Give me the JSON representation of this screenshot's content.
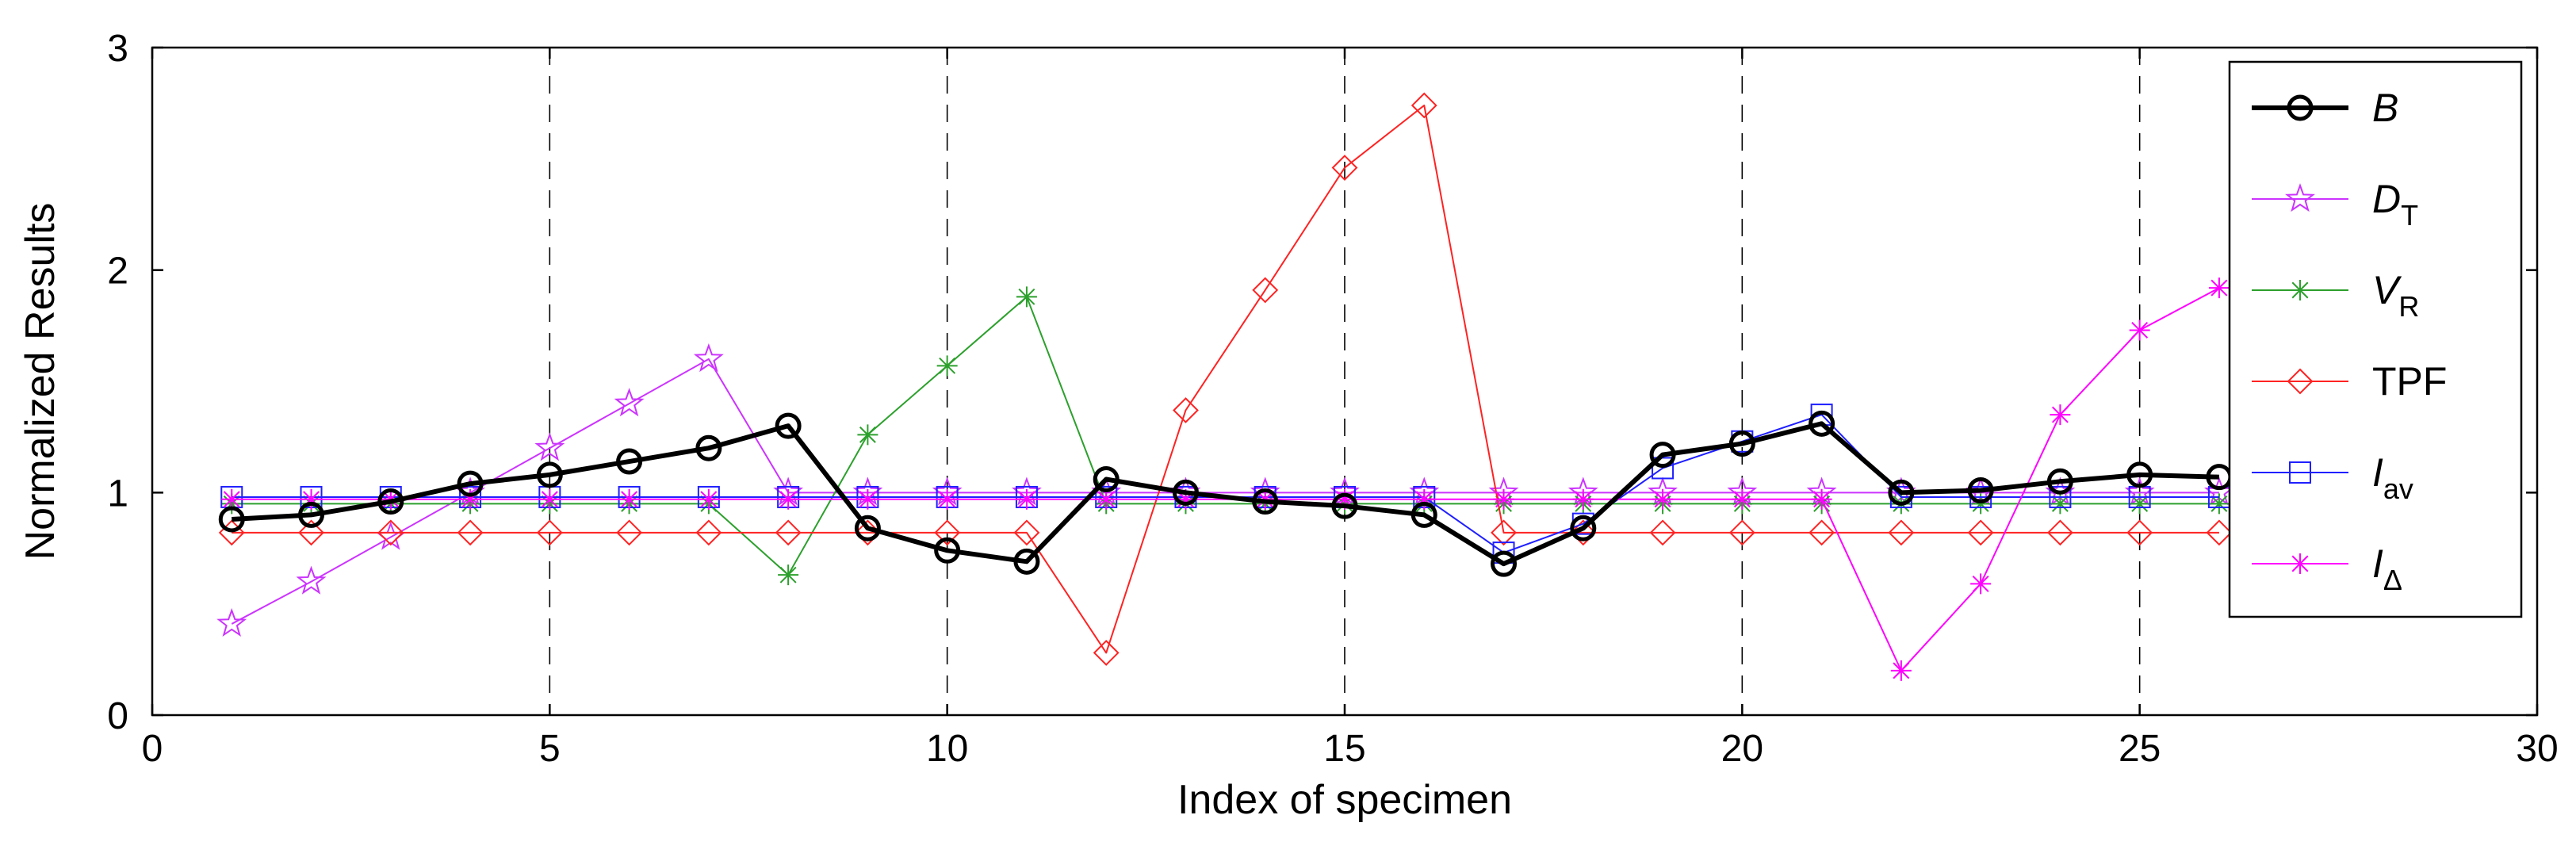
{
  "chart_data": {
    "type": "line",
    "xlabel": "Index of specimen",
    "ylabel": "Normalized Results",
    "xlim": [
      0,
      30
    ],
    "ylim": [
      0,
      3
    ],
    "xticks": [
      0,
      5,
      10,
      15,
      20,
      25,
      30
    ],
    "yticks": [
      0,
      1,
      2,
      3
    ],
    "vlines": [
      5,
      10,
      15,
      20,
      25
    ],
    "legend_position": "top-right",
    "x": [
      1,
      2,
      3,
      4,
      5,
      6,
      7,
      8,
      9,
      10,
      11,
      12,
      13,
      14,
      15,
      16,
      17,
      18,
      19,
      20,
      21,
      22,
      23,
      24,
      25,
      26
    ],
    "series": [
      {
        "name": "B",
        "label_main": "B",
        "label_sub": "",
        "italic": true,
        "color": "#000000",
        "marker": "circle",
        "bold": true,
        "values": [
          0.88,
          0.9,
          0.96,
          1.04,
          1.08,
          1.14,
          1.2,
          1.3,
          0.84,
          0.74,
          0.69,
          1.06,
          1.0,
          0.96,
          0.94,
          0.9,
          0.68,
          0.84,
          1.17,
          1.22,
          1.31,
          1.0,
          1.01,
          1.05,
          1.08,
          1.07
        ]
      },
      {
        "name": "DT",
        "label_main": "D",
        "label_sub": "T",
        "italic": true,
        "color": "#cc33ff",
        "marker": "star",
        "bold": false,
        "values": [
          0.41,
          0.6,
          0.8,
          1.0,
          1.2,
          1.4,
          1.6,
          1.0,
          1.0,
          1.0,
          1.0,
          1.0,
          1.0,
          1.0,
          1.0,
          1.0,
          1.0,
          1.0,
          1.0,
          1.0,
          1.0,
          1.0,
          1.0,
          1.0,
          1.0,
          1.0
        ]
      },
      {
        "name": "VR",
        "label_main": "V",
        "label_sub": "R",
        "italic": true,
        "color": "#2ca02c",
        "marker": "asterisk",
        "bold": false,
        "values": [
          0.95,
          0.95,
          0.95,
          0.95,
          0.95,
          0.95,
          0.95,
          0.63,
          1.26,
          1.57,
          1.88,
          0.95,
          0.95,
          0.95,
          0.95,
          0.95,
          0.95,
          0.95,
          0.95,
          0.95,
          0.95,
          0.95,
          0.95,
          0.95,
          0.95,
          0.95
        ]
      },
      {
        "name": "TPF",
        "label_main": "TPF",
        "label_sub": "",
        "italic": false,
        "color": "#ff2222",
        "marker": "diamond",
        "bold": false,
        "values": [
          0.82,
          0.82,
          0.82,
          0.82,
          0.82,
          0.82,
          0.82,
          0.82,
          0.82,
          0.82,
          0.82,
          0.28,
          1.37,
          1.91,
          2.46,
          2.74,
          0.82,
          0.82,
          0.82,
          0.82,
          0.82,
          0.82,
          0.82,
          0.82,
          0.82,
          0.82
        ]
      },
      {
        "name": "Iav",
        "label_main": "I",
        "label_sub": "av",
        "italic": true,
        "color": "#1f1fff",
        "marker": "square",
        "bold": false,
        "values": [
          0.98,
          0.98,
          0.98,
          0.98,
          0.98,
          0.98,
          0.98,
          0.98,
          0.98,
          0.98,
          0.98,
          0.98,
          0.98,
          0.98,
          0.98,
          0.98,
          0.73,
          0.86,
          1.11,
          1.23,
          1.35,
          0.98,
          0.98,
          0.98,
          0.98,
          0.98
        ]
      },
      {
        "name": "IΔ",
        "label_main": "I",
        "label_sub": "Δ",
        "italic": true,
        "color": "#ff00ff",
        "marker": "asterisk",
        "bold": false,
        "values": [
          0.97,
          0.97,
          0.97,
          0.97,
          0.97,
          0.97,
          0.97,
          0.97,
          0.97,
          0.97,
          0.97,
          0.97,
          0.97,
          0.97,
          0.97,
          0.97,
          0.97,
          0.97,
          0.97,
          0.97,
          0.97,
          0.2,
          0.59,
          1.35,
          1.73,
          1.92
        ]
      }
    ]
  }
}
